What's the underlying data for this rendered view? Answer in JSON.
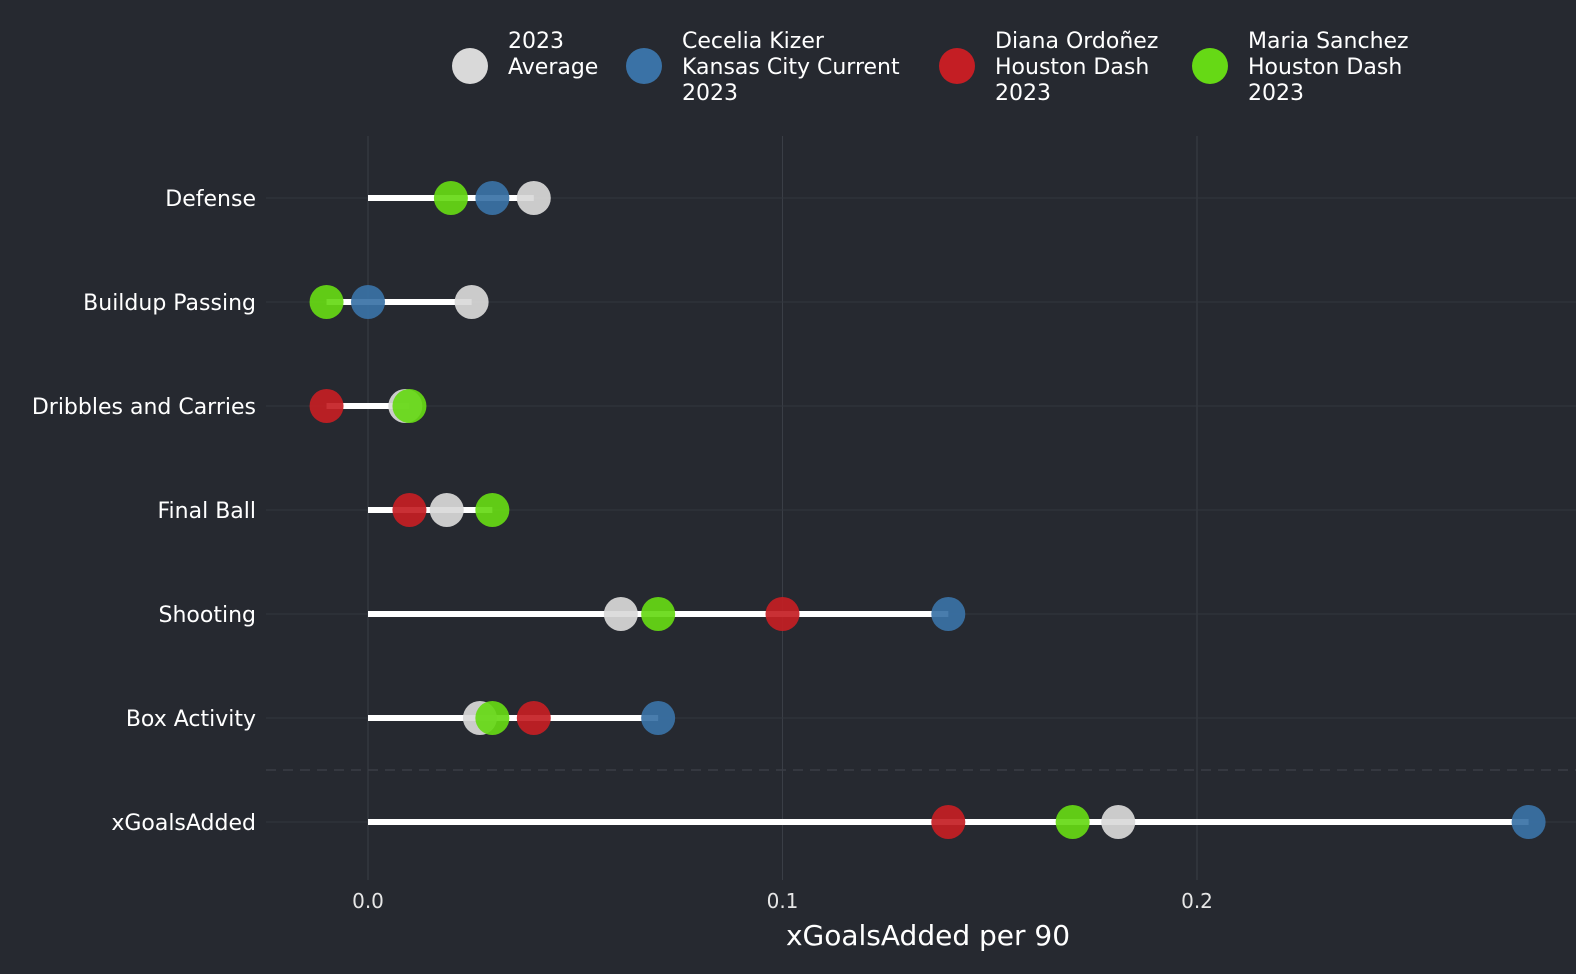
{
  "chart_data": {
    "type": "dot",
    "xlabel": "xGoalsAdded per 90",
    "xlim": [
      -0.025,
      0.29
    ],
    "x_ticks": [
      {
        "value": 0.0,
        "label": "0.0"
      },
      {
        "value": 0.1,
        "label": "0.1"
      },
      {
        "value": 0.2,
        "label": "0.2"
      }
    ],
    "grid": true,
    "legend_position": "top",
    "categories": [
      "Defense",
      "Buildup Passing",
      "Dribbles and Carries",
      "Final Ball",
      "Shooting",
      "Box Activity",
      "xGoalsAdded"
    ],
    "series": [
      {
        "name": "2023 Average",
        "legend_lines": [
          "2023",
          "Average"
        ],
        "color": "#d9d9d9",
        "values": [
          0.04,
          0.025,
          0.009,
          0.019,
          0.061,
          0.027,
          0.181
        ]
      },
      {
        "name": "Cecelia Kizer Kansas City Current 2023",
        "legend_lines": [
          "Cecelia Kizer",
          "Kansas City Current",
          "2023"
        ],
        "color": "#3a72a6",
        "values": [
          0.03,
          0.0,
          null,
          null,
          0.14,
          0.07,
          0.28
        ]
      },
      {
        "name": "Diana Ordoñez Houston Dash 2023",
        "legend_lines": [
          "Diana Ordoñez",
          "Houston Dash",
          "2023"
        ],
        "color": "#c41e24",
        "values": [
          null,
          null,
          -0.01,
          0.01,
          0.1,
          0.04,
          0.14
        ]
      },
      {
        "name": "Maria Sanchez Houston Dash 2023",
        "legend_lines": [
          "Maria Sanchez",
          "Houston Dash",
          "2023"
        ],
        "color": "#66d915",
        "values": [
          0.02,
          -0.01,
          0.01,
          0.03,
          0.07,
          0.03,
          0.17
        ]
      }
    ]
  }
}
